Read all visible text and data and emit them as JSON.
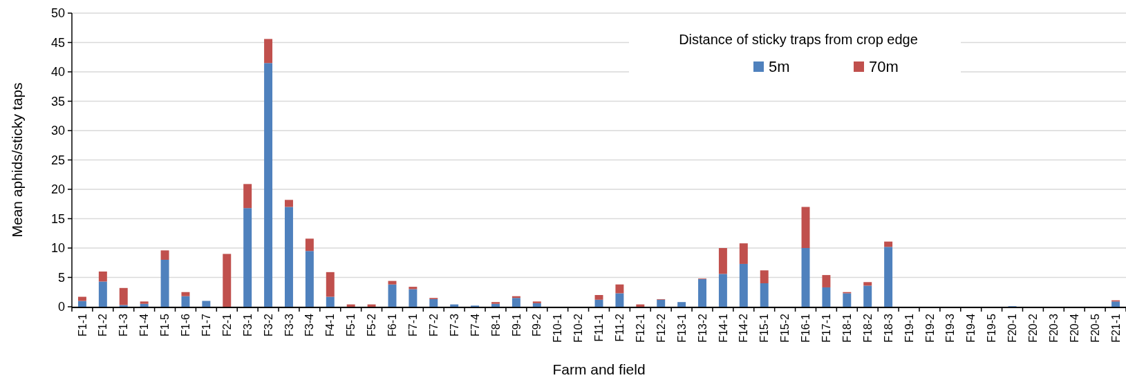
{
  "chart_data": {
    "type": "bar",
    "stacked": true,
    "xlabel": "Farm and field",
    "ylabel": "Mean aphids/sticky taps",
    "legend_title": "Distance of sticky traps from crop edge",
    "legend": "top right",
    "grid": "y",
    "categories": [
      "F1-1",
      "F1-2",
      "F1-3",
      "F1-4",
      "F1-5",
      "F1-6",
      "F1-7",
      "F2-1",
      "F3-1",
      "F3-2",
      "F3-3",
      "F3-4",
      "F4-1",
      "F5-1",
      "F5-2",
      "F6-1",
      "F7-1",
      "F7-2",
      "F7-3",
      "F7-4",
      "F8-1",
      "F9-1",
      "F9-2",
      "F10-1",
      "F10-2",
      "F11-1",
      "F11-2",
      "F12-1",
      "F12-2",
      "F13-1",
      "F13-2",
      "F14-1",
      "F14-2",
      "F15-1",
      "F15-2",
      "F16-1",
      "F17-1",
      "F18-1",
      "F18-2",
      "F18-3",
      "F19-1",
      "F19-2",
      "F19-3",
      "F19-4",
      "F19-5",
      "F20-1",
      "F20-2",
      "F20-3",
      "F20-4",
      "F20-5",
      "F21-1"
    ],
    "series": [
      {
        "name": "5m",
        "color": "#4f81bd",
        "values": [
          1.0,
          4.3,
          0.3,
          0.5,
          8.0,
          1.8,
          1.0,
          0,
          16.8,
          41.5,
          17.0,
          9.5,
          1.7,
          0,
          0,
          3.8,
          3.0,
          1.3,
          0.4,
          0.2,
          0.5,
          1.5,
          0.6,
          0,
          0,
          1.2,
          2.3,
          0,
          1.2,
          0.8,
          4.7,
          5.6,
          7.3,
          4.0,
          0,
          10.0,
          3.3,
          2.3,
          3.6,
          10.2,
          0,
          0,
          0,
          0,
          0,
          0.1,
          0,
          0,
          0,
          0,
          0.9
        ]
      },
      {
        "name": "70m",
        "color": "#c0504d",
        "values": [
          0.7,
          1.7,
          2.9,
          0.4,
          1.6,
          0.7,
          0,
          9.0,
          4.1,
          4.1,
          1.2,
          2.1,
          4.2,
          0.4,
          0.4,
          0.6,
          0.4,
          0.2,
          0,
          0,
          0.3,
          0.3,
          0.3,
          0,
          0,
          0.8,
          1.5,
          0.4,
          0.1,
          0,
          0.1,
          4.4,
          3.5,
          2.2,
          0,
          7.0,
          2.1,
          0.2,
          0.6,
          0.9,
          0,
          0,
          0,
          0,
          0,
          0,
          0,
          0,
          0,
          0,
          0.2
        ]
      }
    ],
    "ylim": [
      0,
      50
    ],
    "yticks": [
      0,
      5,
      10,
      15,
      20,
      25,
      30,
      35,
      40,
      45,
      50
    ]
  }
}
